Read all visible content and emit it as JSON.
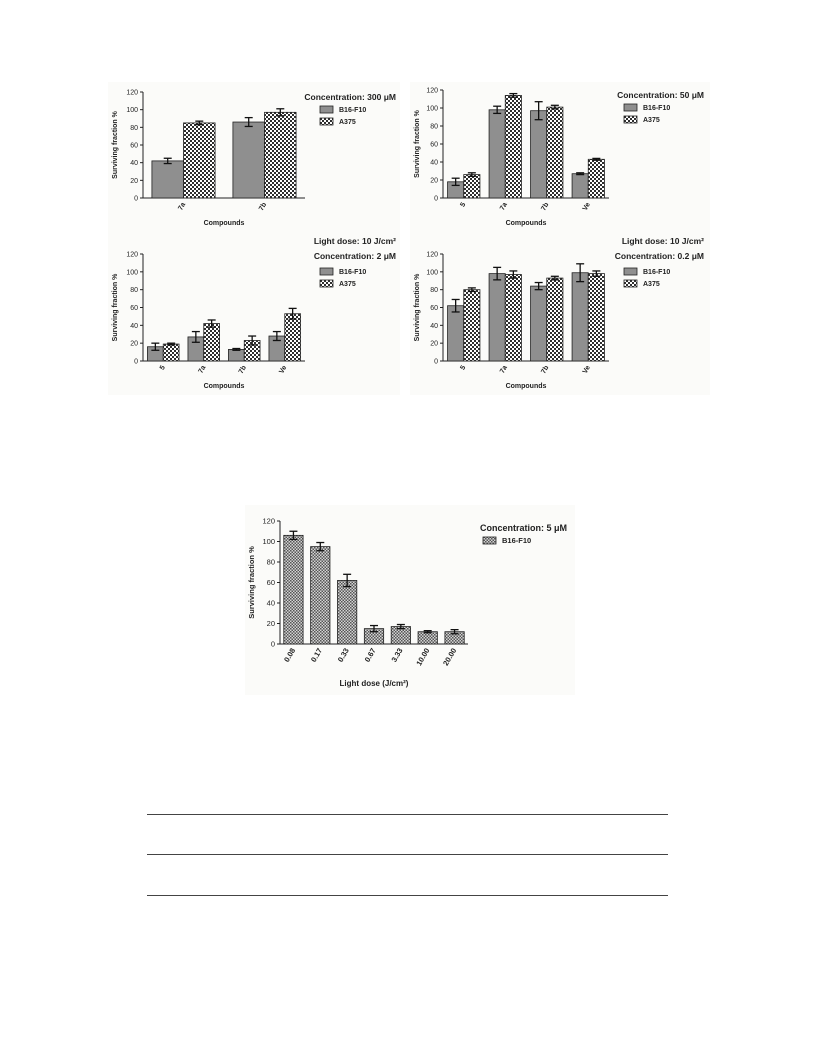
{
  "chart_data": [
    {
      "type": "bar",
      "title_lines": [
        "Concentration: 300 μM"
      ],
      "xlabel": "Compounds",
      "ylabel": "Surviving fraction %",
      "ylim": [
        0,
        120
      ],
      "yticks": [
        0,
        20,
        40,
        60,
        80,
        100,
        120
      ],
      "categories": [
        "7a",
        "7b"
      ],
      "series": [
        {
          "name": "B16-F10",
          "pattern": "solid",
          "values": [
            42,
            86
          ],
          "errors": [
            3,
            5
          ]
        },
        {
          "name": "A375",
          "pattern": "check",
          "values": [
            85,
            97
          ],
          "errors": [
            2,
            4
          ]
        }
      ],
      "legend": "right",
      "grid": false
    },
    {
      "type": "bar",
      "title_lines": [
        "Concentration: 50 μM"
      ],
      "xlabel": "Compounds",
      "ylabel": "Surviving fraction %",
      "ylim": [
        0,
        120
      ],
      "yticks": [
        0,
        20,
        40,
        60,
        80,
        100,
        120
      ],
      "categories": [
        "5",
        "7a",
        "7b",
        "Ve"
      ],
      "series": [
        {
          "name": "B16-F10",
          "pattern": "solid",
          "values": [
            18,
            98,
            97,
            27
          ],
          "errors": [
            4,
            4,
            10,
            1
          ]
        },
        {
          "name": "A375",
          "pattern": "check",
          "values": [
            26,
            114,
            101,
            43
          ],
          "errors": [
            2,
            2,
            2,
            1
          ]
        }
      ],
      "legend": "right",
      "grid": false
    },
    {
      "type": "bar",
      "title_lines": [
        "Light dose: 10 J/cm²",
        "Concentration: 2 μM"
      ],
      "xlabel": "Compounds",
      "ylabel": "Surviving fraction %",
      "ylim": [
        0,
        120
      ],
      "yticks": [
        0,
        20,
        40,
        60,
        80,
        100,
        120
      ],
      "categories": [
        "5",
        "7a",
        "7b",
        "Ve"
      ],
      "series": [
        {
          "name": "B16-F10",
          "pattern": "solid",
          "values": [
            16,
            27,
            13,
            28
          ],
          "errors": [
            4,
            6,
            1,
            5
          ]
        },
        {
          "name": "A375",
          "pattern": "check",
          "values": [
            19,
            42,
            23,
            53
          ],
          "errors": [
            1,
            4,
            5,
            6
          ]
        }
      ],
      "legend": "right",
      "grid": false
    },
    {
      "type": "bar",
      "title_lines": [
        "Light dose: 10 J/cm²",
        "Concentration: 0.2 μM"
      ],
      "xlabel": "Compounds",
      "ylabel": "Surviving fraction %",
      "ylim": [
        0,
        120
      ],
      "yticks": [
        0,
        20,
        40,
        60,
        80,
        100,
        120
      ],
      "categories": [
        "5",
        "7a",
        "7b",
        "Ve"
      ],
      "series": [
        {
          "name": "B16-F10",
          "pattern": "solid",
          "values": [
            62,
            98,
            84,
            99
          ],
          "errors": [
            7,
            7,
            4,
            10
          ]
        },
        {
          "name": "A375",
          "pattern": "check",
          "values": [
            80,
            97,
            93,
            98
          ],
          "errors": [
            2,
            4,
            2,
            3
          ]
        }
      ],
      "legend": "right",
      "grid": false
    },
    {
      "type": "bar",
      "title_lines": [
        "Concentration: 5 μM"
      ],
      "xlabel": "Light dose (J/cm²)",
      "ylabel": "Surviving fraction %",
      "ylim": [
        0,
        120
      ],
      "yticks": [
        0,
        20,
        40,
        60,
        80,
        100,
        120
      ],
      "categories": [
        "0.08",
        "0.17",
        "0.33",
        "0.67",
        "3.33",
        "10.00",
        "20.00"
      ],
      "series": [
        {
          "name": "B16-F10",
          "pattern": "dense",
          "values": [
            106,
            95,
            62,
            15,
            17,
            12,
            12
          ],
          "errors": [
            4,
            4,
            6,
            3,
            2,
            1,
            2
          ]
        }
      ],
      "legend": "right",
      "grid": false
    }
  ],
  "colors": {
    "bar_fill": "#8f8f8f",
    "check_dark": "#2e2e2e",
    "check_light": "#ffffff",
    "axis": "#222222",
    "panel_background": "#fbfbf9"
  }
}
